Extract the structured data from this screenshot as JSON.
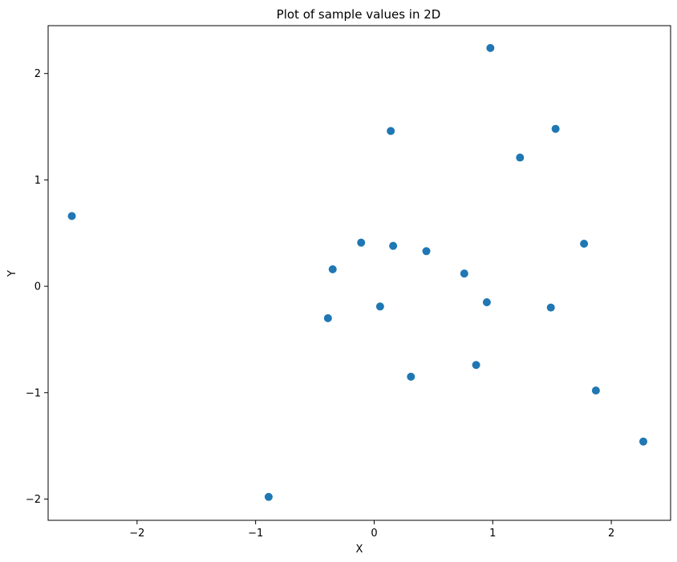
{
  "chart_data": {
    "type": "scatter",
    "title": "Plot of sample values in 2D",
    "xlabel": "X",
    "ylabel": "Y",
    "xlim": [
      -2.75,
      2.5
    ],
    "ylim": [
      -2.2,
      2.45
    ],
    "xticks": [
      -2,
      -1,
      0,
      1,
      2
    ],
    "yticks": [
      -2,
      -1,
      0,
      1,
      2
    ],
    "xtick_labels": [
      "−2",
      "−1",
      "0",
      "1",
      "2"
    ],
    "ytick_labels": [
      "−2",
      "−1",
      "0",
      "1",
      "2"
    ],
    "grid": false,
    "color": "#1f77b4",
    "points": [
      {
        "x": -2.55,
        "y": 0.66
      },
      {
        "x": -0.89,
        "y": -1.98
      },
      {
        "x": -0.39,
        "y": -0.3
      },
      {
        "x": -0.35,
        "y": 0.16
      },
      {
        "x": -0.11,
        "y": 0.41
      },
      {
        "x": 0.05,
        "y": -0.19
      },
      {
        "x": 0.14,
        "y": 1.46
      },
      {
        "x": 0.16,
        "y": 0.38
      },
      {
        "x": 0.31,
        "y": -0.85
      },
      {
        "x": 0.44,
        "y": 0.33
      },
      {
        "x": 0.76,
        "y": 0.12
      },
      {
        "x": 0.86,
        "y": -0.74
      },
      {
        "x": 0.95,
        "y": -0.15
      },
      {
        "x": 0.98,
        "y": 2.24
      },
      {
        "x": 1.23,
        "y": 1.21
      },
      {
        "x": 1.49,
        "y": -0.2
      },
      {
        "x": 1.53,
        "y": 1.48
      },
      {
        "x": 1.77,
        "y": 0.4
      },
      {
        "x": 1.87,
        "y": -0.98
      },
      {
        "x": 2.27,
        "y": -1.46
      }
    ]
  }
}
